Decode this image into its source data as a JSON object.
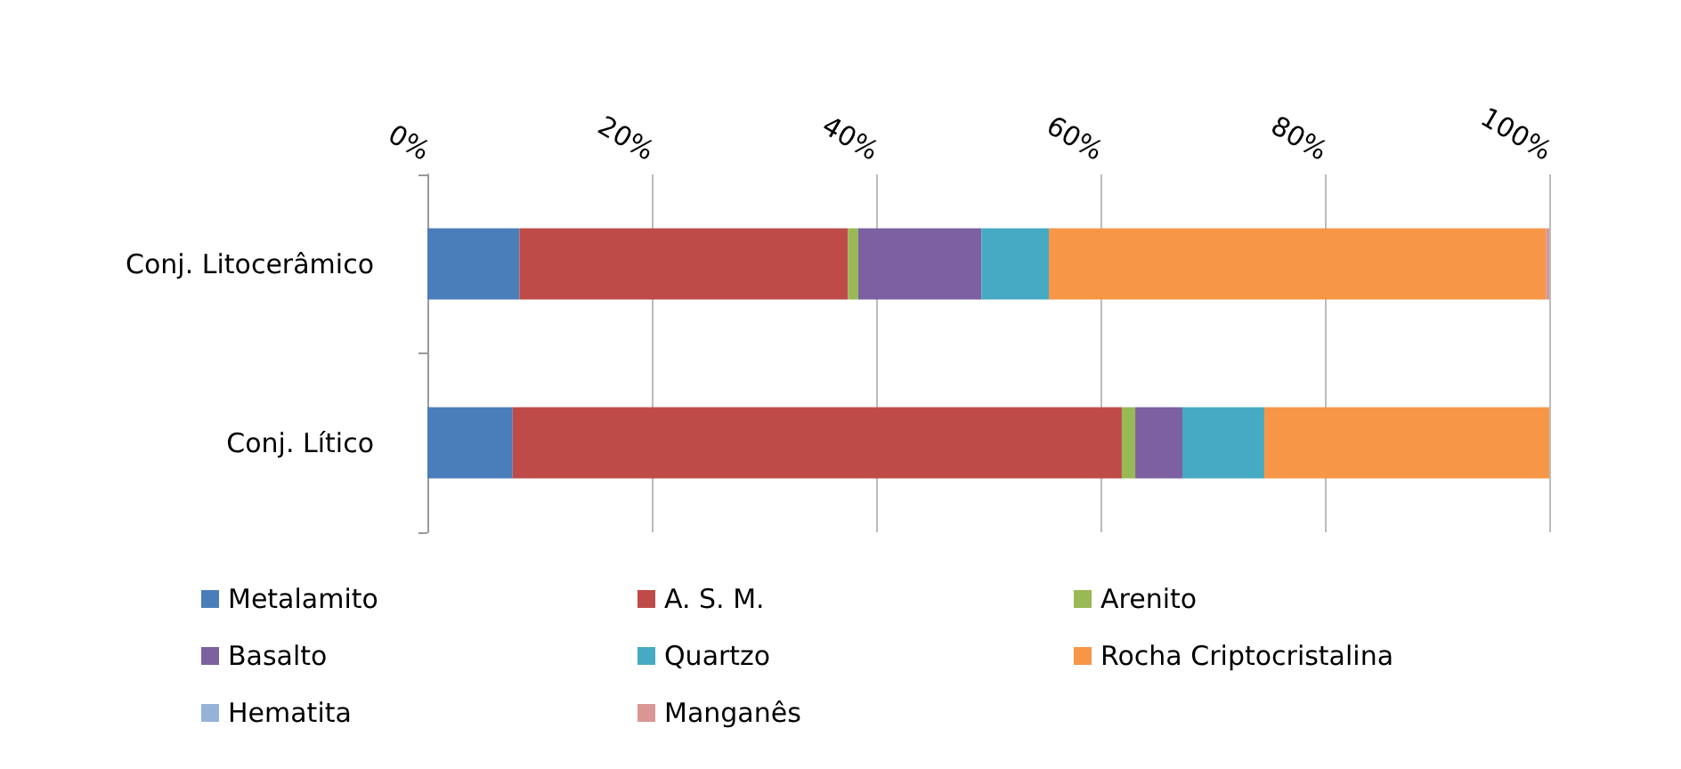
{
  "chart_data": {
    "type": "bar",
    "orientation": "horizontal",
    "stacked": true,
    "categories": [
      "Conj. Litocerâmico",
      "Conj. Lítico"
    ],
    "series": [
      {
        "name": "Metalamito",
        "color": "#4a7ebb",
        "values": [
          8.2,
          7.6
        ]
      },
      {
        "name": "A. S. M.",
        "color": "#be4b48",
        "values": [
          29.3,
          54.3
        ]
      },
      {
        "name": "Arenito",
        "color": "#98b954",
        "values": [
          0.9,
          1.2
        ]
      },
      {
        "name": "Basalto",
        "color": "#7d60a0",
        "values": [
          11,
          4.2
        ]
      },
      {
        "name": "Quartzo",
        "color": "#46aac5",
        "values": [
          6,
          7.3
        ]
      },
      {
        "name": "Rocha Criptocristalina",
        "color": "#f79646",
        "values": [
          44.3,
          25.4
        ]
      },
      {
        "name": "Hematita",
        "color": "#95b3d7",
        "values": [
          null,
          null
        ]
      },
      {
        "name": "Manganês",
        "color": "#d99694",
        "values": [
          0.3,
          null
        ]
      }
    ],
    "xlim": [
      0,
      100
    ],
    "xticks": [
      {
        "value": 0,
        "label": "0%"
      },
      {
        "value": 20,
        "label": "20%"
      },
      {
        "value": 40,
        "label": "40%"
      },
      {
        "value": 60,
        "label": "60%"
      },
      {
        "value": 80,
        "label": "80%"
      },
      {
        "value": 100,
        "label": "100%"
      }
    ],
    "grid": "x",
    "legend": "bottom"
  }
}
